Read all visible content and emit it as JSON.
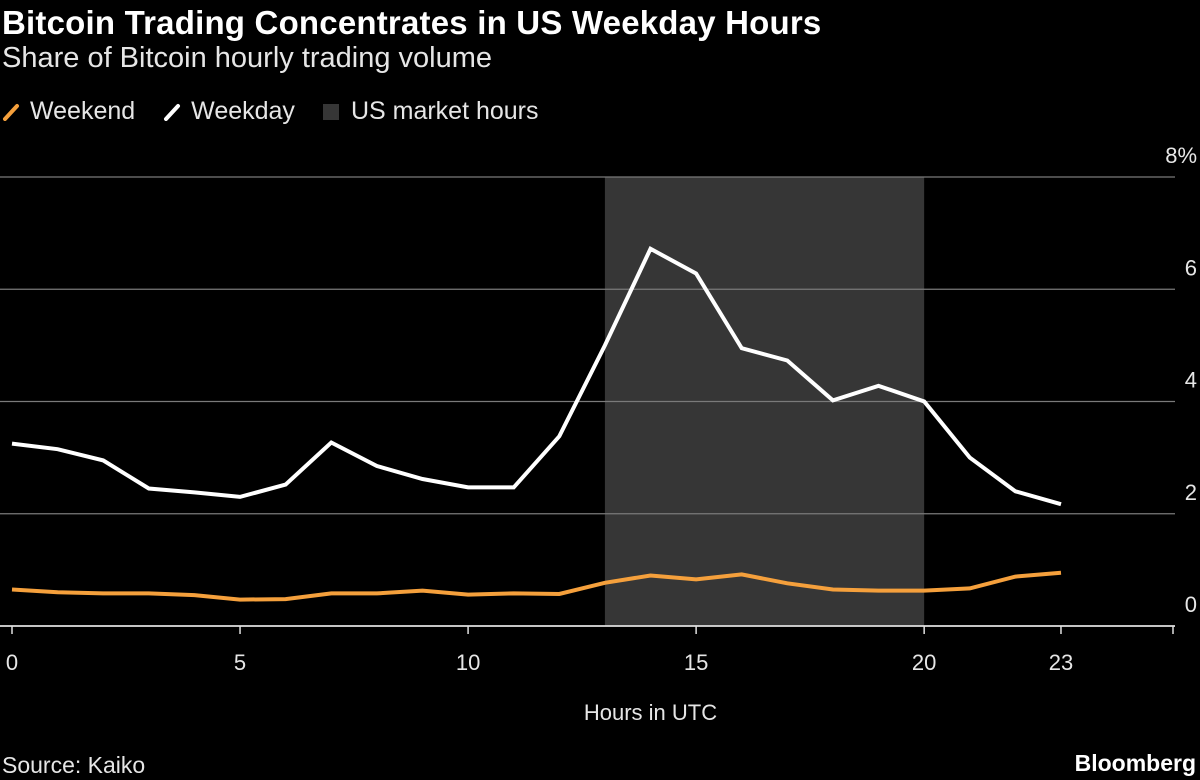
{
  "header": {
    "title": "Bitcoin Trading Concentrates in US Weekday Hours",
    "subtitle": "Share of Bitcoin hourly trading volume"
  },
  "legend": {
    "weekend": "Weekend",
    "weekday": "Weekday",
    "market_hours": "US market hours"
  },
  "footer": {
    "source": "Source: Kaiko",
    "brand": "Bloomberg"
  },
  "colors": {
    "background": "#000000",
    "weekend": "#f5a03c",
    "weekday": "#ffffff",
    "market_hours": "#363636",
    "grid": "#7a7a7a"
  },
  "chart_data": {
    "type": "line",
    "title": "Bitcoin Trading Concentrates in US Weekday Hours",
    "subtitle": "Share of Bitcoin hourly trading volume",
    "xlabel": "Hours in UTC",
    "ylabel": "",
    "x": [
      0,
      1,
      2,
      3,
      4,
      5,
      6,
      7,
      8,
      9,
      10,
      11,
      12,
      13,
      14,
      15,
      16,
      17,
      18,
      19,
      20,
      21,
      22,
      23
    ],
    "series": [
      {
        "name": "Weekday",
        "values": [
          3.25,
          3.15,
          2.95,
          2.45,
          2.38,
          2.3,
          2.52,
          3.27,
          2.85,
          2.62,
          2.47,
          2.47,
          3.38,
          5.0,
          6.72,
          6.28,
          4.95,
          4.73,
          4.02,
          4.28,
          4.0,
          3.0,
          2.4,
          2.17
        ]
      },
      {
        "name": "Weekend",
        "values": [
          0.65,
          0.6,
          0.58,
          0.58,
          0.55,
          0.47,
          0.48,
          0.58,
          0.58,
          0.63,
          0.56,
          0.58,
          0.57,
          0.77,
          0.9,
          0.83,
          0.92,
          0.76,
          0.65,
          0.63,
          0.63,
          0.67,
          0.88,
          0.95
        ]
      }
    ],
    "highlight": {
      "label": "US market hours",
      "x_start": 13,
      "x_end": 20
    },
    "xticks": [
      0,
      5,
      10,
      15,
      20,
      23
    ],
    "yticks": [
      0,
      2,
      4,
      6,
      8
    ],
    "ytick_labels": [
      "0",
      "2",
      "4",
      "6",
      "8%"
    ],
    "xlim": [
      0,
      25.5
    ],
    "ylim": [
      0,
      8
    ],
    "grid": true,
    "legend_position": "top-left"
  }
}
